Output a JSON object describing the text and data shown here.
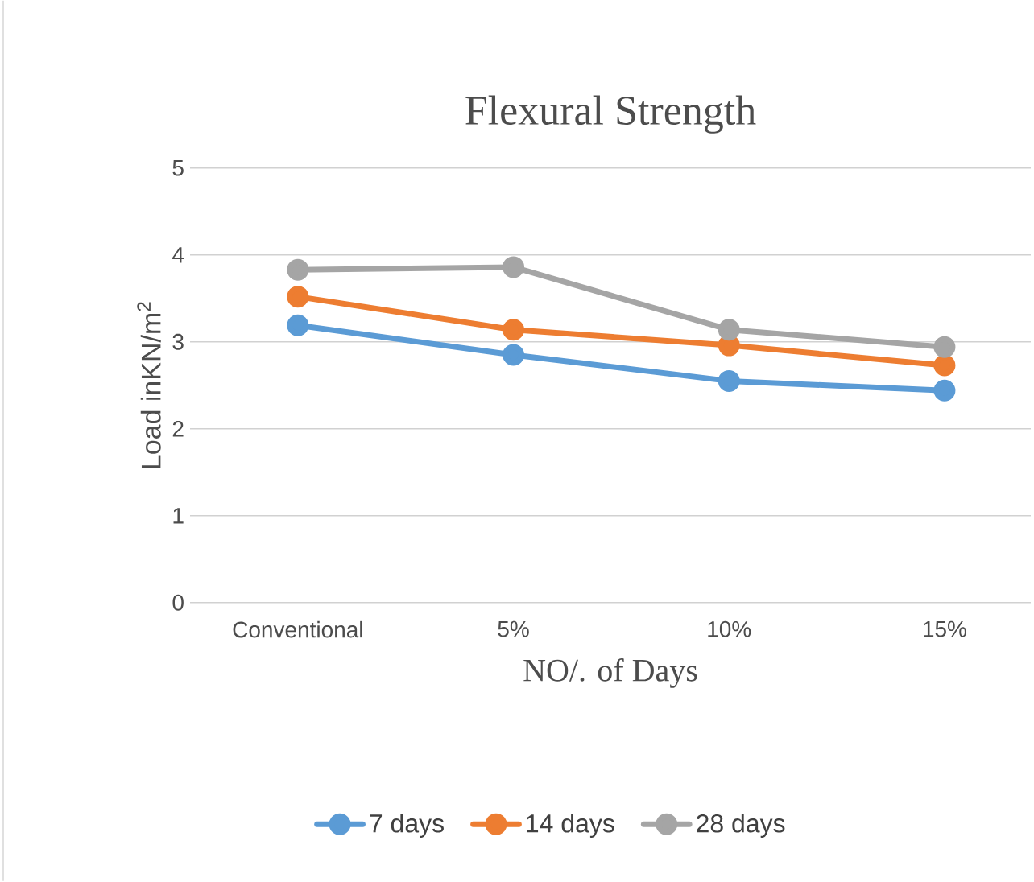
{
  "chart_data": {
    "type": "line",
    "title": "Flexural Strength",
    "xlabel": "NO/. of Days",
    "ylabel": "Load inKN/m$^{2}$",
    "categories": [
      "Conventional",
      "5%",
      "10%",
      "15%"
    ],
    "series": [
      {
        "name": "7 days",
        "color": "#5b9bd5",
        "values": [
          3.19,
          2.85,
          2.55,
          2.44
        ]
      },
      {
        "name": "14 days",
        "color": "#ed7d31",
        "values": [
          3.52,
          3.14,
          2.96,
          2.73
        ]
      },
      {
        "name": "28 days",
        "color": "#a5a5a5",
        "values": [
          3.83,
          3.86,
          3.14,
          2.94
        ]
      }
    ],
    "ylim": [
      0,
      5
    ],
    "yticks": [
      0,
      1,
      2,
      3,
      4,
      5
    ],
    "grid": "y",
    "legend": "bottom",
    "marker": "circle",
    "line_style": "solid"
  }
}
